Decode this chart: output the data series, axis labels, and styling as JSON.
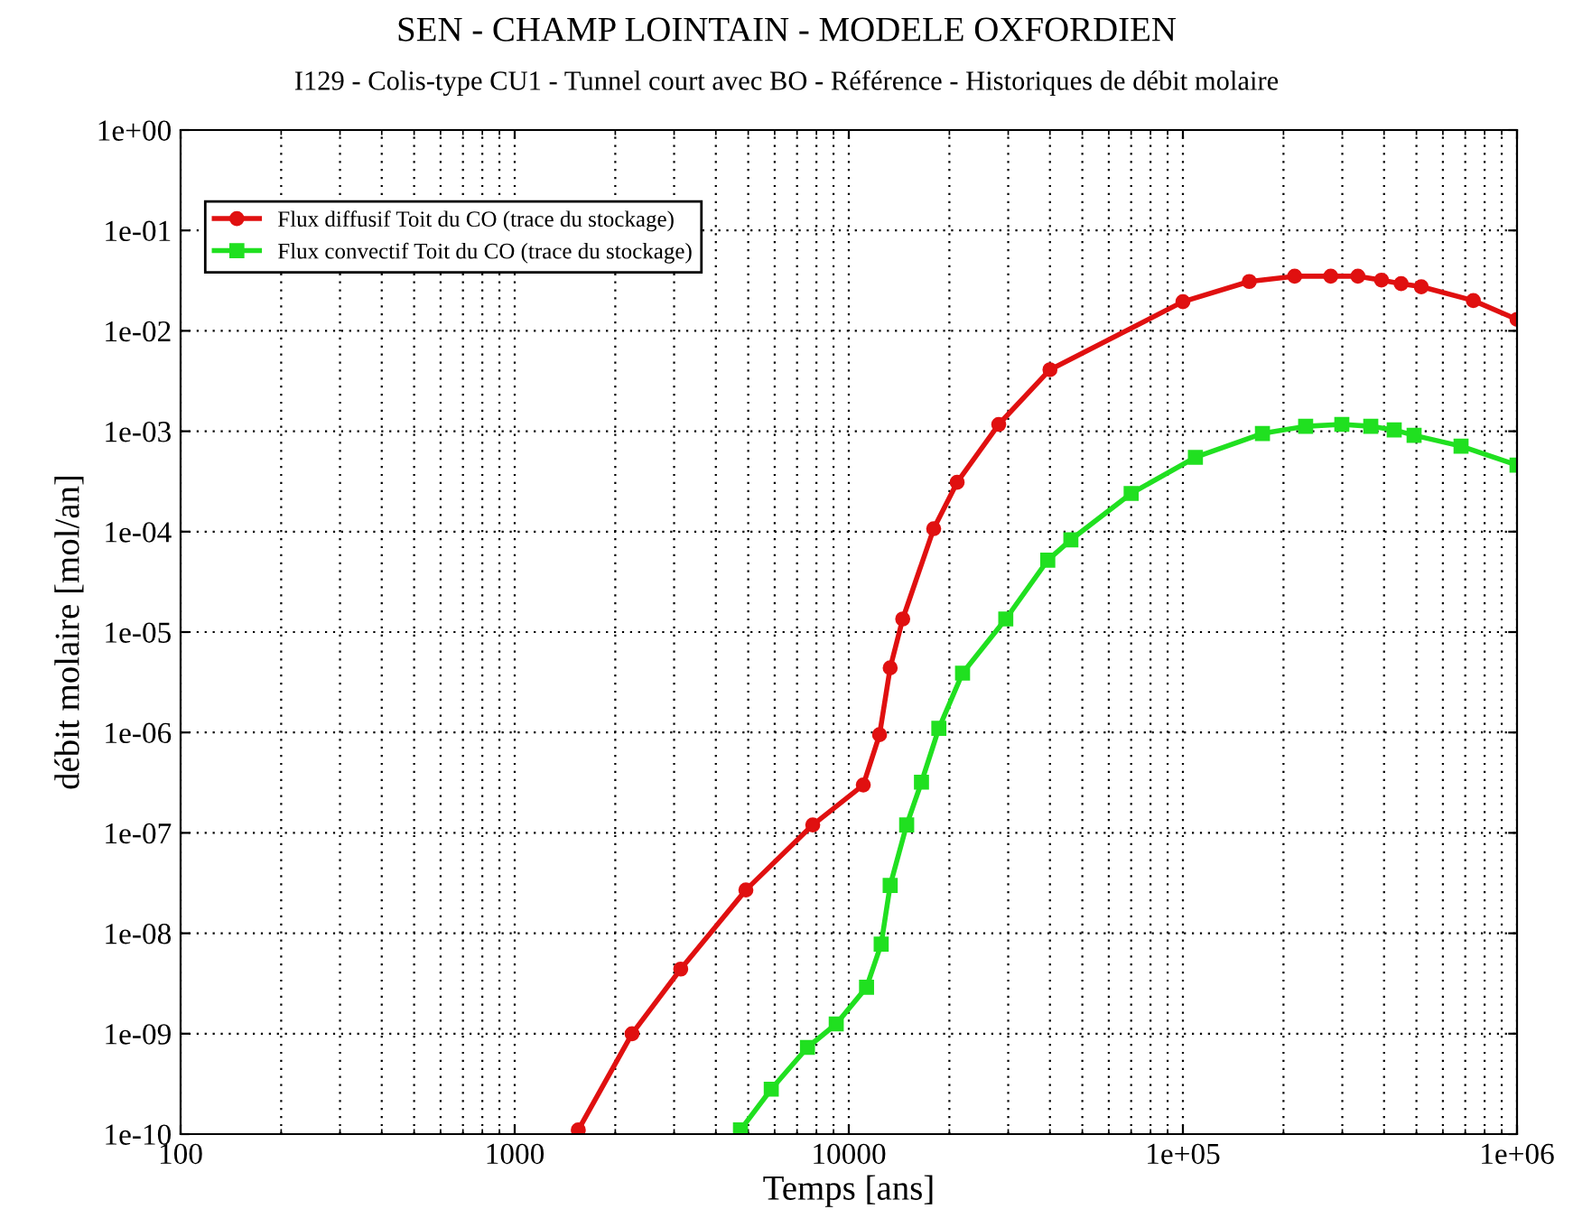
{
  "chart_data": {
    "type": "line",
    "title": "SEN - CHAMP LOINTAIN - MODELE OXFORDIEN",
    "subtitle": "I129 - Colis-type CU1 - Tunnel court avec BO - Référence - Historiques de débit molaire",
    "xlabel": "Temps [ans]",
    "ylabel": "débit molaire [mol/an]",
    "log": "xy",
    "grid": true,
    "legend": "top left",
    "line_style": "solid",
    "xlim": [
      100,
      1000000
    ],
    "ylim": [
      1e-10,
      1
    ],
    "xticks": [
      100,
      1000,
      10000,
      {
        "value": 100000,
        "label": "1e+05"
      },
      {
        "value": 1000000,
        "label": "1e+06"
      }
    ],
    "yticks": [
      {
        "value": 1e-10,
        "label": "1e-10"
      },
      {
        "value": 1e-09,
        "label": "1e-09"
      },
      {
        "value": 1e-08,
        "label": "1e-08"
      },
      {
        "value": 1e-07,
        "label": "1e-07"
      },
      {
        "value": 1e-06,
        "label": "1e-06"
      },
      {
        "value": 1e-05,
        "label": "1e-05"
      },
      {
        "value": 0.0001,
        "label": "1e-04"
      },
      {
        "value": 0.001,
        "label": "1e-03"
      },
      {
        "value": 0.01,
        "label": "1e-02"
      },
      {
        "value": 0.1,
        "label": "1e-01"
      },
      {
        "value": 1,
        "label": "1e+00"
      }
    ],
    "series": [
      {
        "name": "Flux diffusif Toit du CO (trace du stockage)",
        "color": "#e01010",
        "marker": "circle",
        "x": [
          1550,
          2245,
          3140,
          4920,
          7800,
          11050,
          12360,
          13300,
          14500,
          17950,
          21100,
          28100,
          40000,
          100000,
          158000,
          216000,
          277000,
          334000,
          393000,
          450000,
          517000,
          740000,
          1000000
        ],
        "values": [
          1.1e-10,
          1e-09,
          4.4e-09,
          2.7e-08,
          1.2e-07,
          3e-07,
          9.5e-07,
          4.4e-06,
          1.35e-05,
          0.000107,
          0.00031,
          0.00117,
          0.0041,
          0.0195,
          0.031,
          0.035,
          0.035,
          0.035,
          0.032,
          0.0295,
          0.0275,
          0.02,
          0.013
        ]
      },
      {
        "name": "Flux convectif Toit du CO (trace du stockage)",
        "color": "#20e020",
        "marker": "square",
        "x": [
          4740,
          5860,
          7520,
          9170,
          11300,
          12500,
          13300,
          14900,
          16500,
          18600,
          21900,
          29500,
          39400,
          46200,
          70000,
          109000,
          173000,
          233000,
          299000,
          365000,
          429000,
          492000,
          680000,
          1000000
        ],
        "values": [
          1.1e-10,
          2.8e-10,
          7.3e-10,
          1.25e-09,
          2.9e-09,
          7.8e-09,
          3e-08,
          1.2e-07,
          3.2e-07,
          1.1e-06,
          3.9e-06,
          1.35e-05,
          5.2e-05,
          8.3e-05,
          0.00024,
          0.00055,
          0.00095,
          0.00112,
          0.00117,
          0.00112,
          0.00103,
          0.00091,
          0.00071,
          0.00046
        ]
      }
    ]
  }
}
